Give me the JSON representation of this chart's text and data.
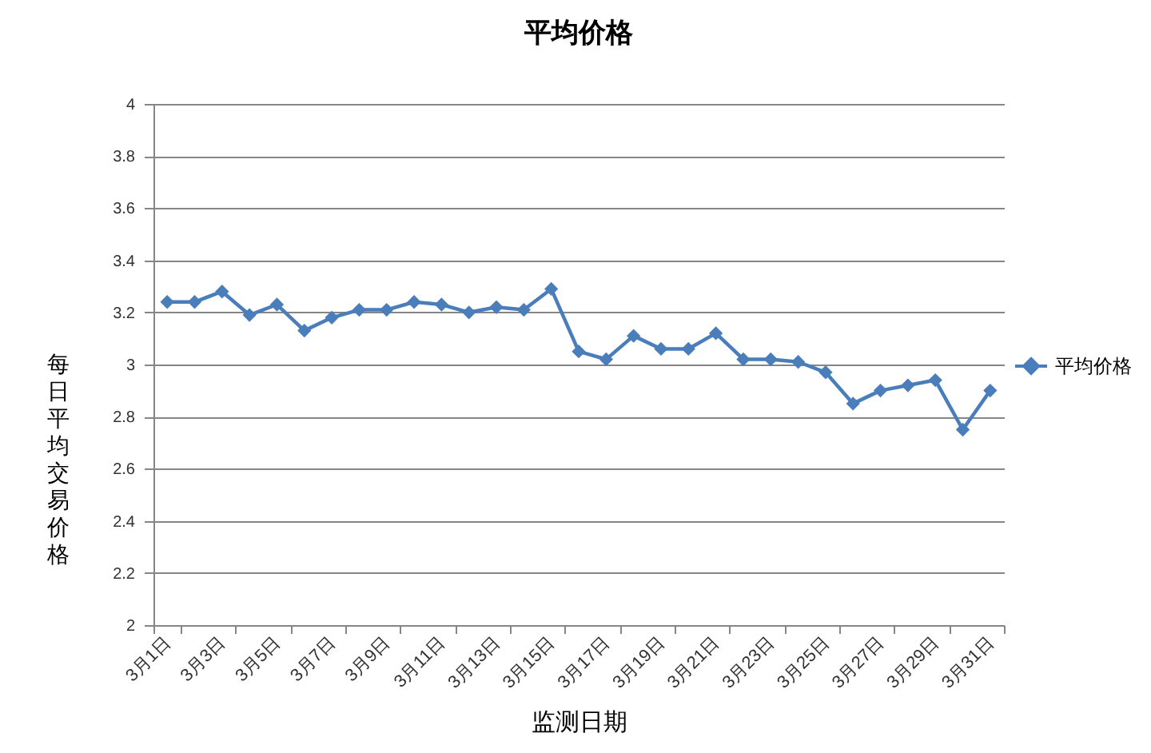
{
  "chart_data": {
    "type": "line",
    "title": "平均价格",
    "xlabel": "监测日期",
    "ylabel": "每日平均交易价格",
    "categories": [
      "3月1日",
      null,
      "3月3日",
      null,
      "3月5日",
      null,
      "3月7日",
      null,
      "3月9日",
      null,
      "3月11日",
      null,
      "3月13日",
      null,
      "3月15日",
      null,
      "3月17日",
      null,
      "3月19日",
      null,
      "3月21日",
      null,
      "3月23日",
      null,
      "3月25日",
      null,
      "3月27日",
      null,
      "3月29日",
      null,
      "3月31日"
    ],
    "series": [
      {
        "name": "平均价格",
        "color": "#4a7ebb",
        "values": [
          3.24,
          3.24,
          3.28,
          3.19,
          3.23,
          3.13,
          3.18,
          3.21,
          3.21,
          3.24,
          3.23,
          3.2,
          3.22,
          3.21,
          3.29,
          3.05,
          3.02,
          3.11,
          3.06,
          3.06,
          3.12,
          3.02,
          3.02,
          3.01,
          2.97,
          2.85,
          2.9,
          2.92,
          2.94,
          2.75,
          2.9
        ]
      }
    ],
    "ylim": [
      2,
      4
    ],
    "yticks": [
      2,
      2.2,
      2.4,
      2.6,
      2.8,
      3,
      3.2,
      3.4,
      3.6,
      3.8,
      4
    ],
    "grid": "y",
    "legend": "right",
    "marker": "diamond"
  }
}
